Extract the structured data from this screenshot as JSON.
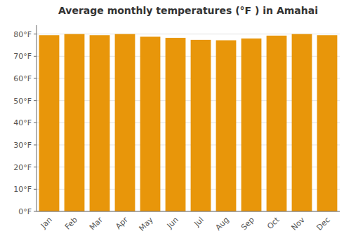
{
  "chart_data": {
    "type": "bar",
    "title": "Average monthly temperatures (°F ) in Amahai",
    "categories": [
      "Jan",
      "Feb",
      "Mar",
      "Apr",
      "May",
      "Jun",
      "Jul",
      "Aug",
      "Sep",
      "Oct",
      "Nov",
      "Dec"
    ],
    "values": [
      79.5,
      80.0,
      79.5,
      80.0,
      78.8,
      78.3,
      77.4,
      77.2,
      78.0,
      79.3,
      80.0,
      79.5
    ],
    "color": "#E8960A",
    "ylim": [
      0,
      84
    ],
    "yticks": [
      {
        "value": 0,
        "label": "0°F"
      },
      {
        "value": 10,
        "label": "10°F"
      },
      {
        "value": 20,
        "label": "20°F"
      },
      {
        "value": 30,
        "label": "30°F"
      },
      {
        "value": 40,
        "label": "40°F"
      },
      {
        "value": 50,
        "label": "50°F"
      },
      {
        "value": 60,
        "label": "60°F"
      },
      {
        "value": 70,
        "label": "70°F"
      },
      {
        "value": 80,
        "label": "80°F"
      }
    ],
    "grid": true
  }
}
